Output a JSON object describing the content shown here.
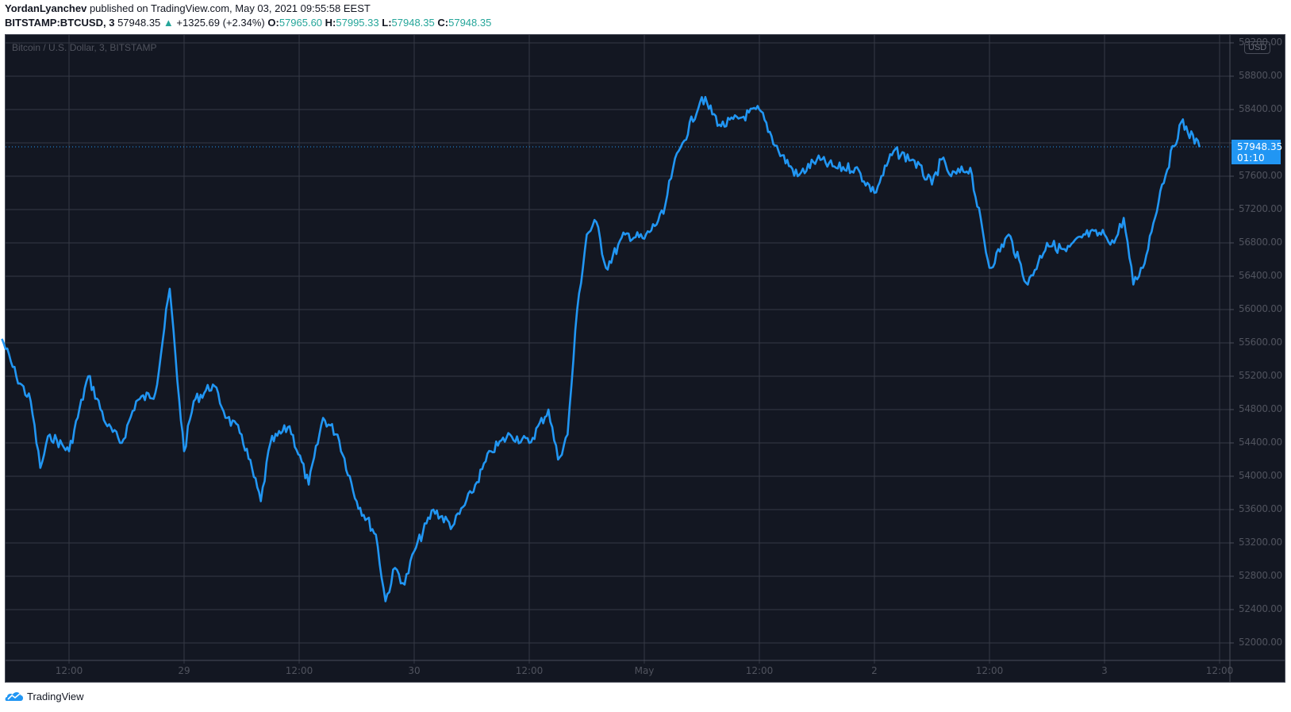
{
  "header": {
    "author": "YordanLyanchev",
    "published_text": "published on TradingView.com, May 03, 2021 09:55:58 EEST",
    "symbol": "BITSTAMP:BTCUSD, 3",
    "last_price": "57948.35",
    "change_arrow": "▲",
    "change": "+1325.69 (+2.34%)",
    "ohlc": {
      "o_label": "O:",
      "o": "57965.60",
      "h_label": "H:",
      "h": "57995.33",
      "l_label": "L:",
      "l": "57948.35",
      "c_label": "C:",
      "c": "57948.35"
    }
  },
  "chart": {
    "legend": "Bitcoin / U.S. Dollar, 3, BITSTAMP",
    "currency_badge": "USD",
    "price_tag": {
      "price": "57948.35",
      "countdown": "01:10"
    },
    "line_color": "#2196f3",
    "background": "#131722",
    "grid_color": "#363a45"
  },
  "y_axis": {
    "labels": [
      "59200.00",
      "58800.00",
      "58400.00",
      "58000.00",
      "57600.00",
      "57200.00",
      "56800.00",
      "56400.00",
      "56000.00",
      "55600.00",
      "55200.00",
      "54800.00",
      "54400.00",
      "54000.00",
      "53600.00",
      "53200.00",
      "52800.00",
      "52400.00",
      "52000.00"
    ]
  },
  "x_axis": {
    "labels": [
      "12:00",
      "29",
      "12:00",
      "30",
      "12:00",
      "May",
      "12:00",
      "2",
      "12:00",
      "3",
      "12:00"
    ]
  },
  "footer": {
    "brand": "TradingView"
  },
  "chart_data": {
    "type": "line",
    "title": "Bitcoin / U.S. Dollar, 3, BITSTAMP",
    "xlabel": "",
    "ylabel": "USD",
    "ylim": [
      51800,
      59300
    ],
    "x_ticks": [
      "12:00",
      "29",
      "12:00",
      "30",
      "12:00",
      "May",
      "12:00",
      "2",
      "12:00",
      "3",
      "12:00"
    ],
    "y_ticks": [
      52000,
      52400,
      52800,
      53200,
      53600,
      54000,
      54400,
      54800,
      55200,
      55600,
      56000,
      56400,
      56800,
      57200,
      57600,
      58000,
      58400,
      58800,
      59200
    ],
    "grid": true,
    "series": [
      {
        "name": "BTCUSD",
        "x": [
          "Apr28 05:00",
          "Apr28 06:30",
          "Apr28 08:00",
          "Apr28 09:00",
          "Apr28 10:00",
          "Apr28 12:00",
          "Apr28 14:00",
          "Apr28 16:00",
          "Apr28 17:30",
          "Apr28 19:00",
          "Apr28 21:00",
          "Apr28 22:30",
          "Apr28 23:30",
          "Apr29 00:00",
          "Apr29 01:00",
          "Apr29 03:00",
          "Apr29 04:30",
          "Apr29 06:00",
          "Apr29 08:00",
          "Apr29 09:00",
          "Apr29 11:00",
          "Apr29 13:00",
          "Apr29 14:30",
          "Apr29 16:00",
          "Apr29 18:00",
          "Apr29 20:00",
          "Apr29 21:00",
          "Apr29 22:00",
          "Apr29 23:00",
          "Apr30 00:00",
          "Apr30 02:00",
          "Apr30 04:00",
          "Apr30 06:00",
          "Apr30 08:00",
          "Apr30 10:00",
          "Apr30 12:00",
          "Apr30 14:00",
          "Apr30 15:00",
          "Apr30 16:00",
          "Apr30 17:00",
          "Apr30 18:00",
          "Apr30 19:00",
          "Apr30 20:00",
          "Apr30 22:00",
          "May01 00:00",
          "May01 02:00",
          "May01 03:00",
          "May01 04:00",
          "May01 06:00",
          "May01 08:00",
          "May01 10:00",
          "May01 12:00",
          "May01 14:00",
          "May01 16:00",
          "May01 18:00",
          "May01 20:00",
          "May01 22:00",
          "May02 00:00",
          "May02 02:00",
          "May02 04:00",
          "May02 06:00",
          "May02 07:00",
          "May02 08:00",
          "May02 10:00",
          "May02 12:00",
          "May02 14:00",
          "May02 16:00",
          "May02 18:00",
          "May02 20:00",
          "May02 22:00",
          "May03 00:00",
          "May03 01:00",
          "May03 02:00",
          "May03 03:00",
          "May03 04:00",
          "May03 06:00",
          "May03 08:00",
          "May03 09:55"
        ],
        "values": [
          55650,
          55200,
          54900,
          54100,
          54500,
          54300,
          55200,
          54600,
          54400,
          54900,
          55000,
          56250,
          54900,
          54300,
          54900,
          55100,
          54700,
          54500,
          53700,
          54400,
          54600,
          53900,
          54700,
          54500,
          53700,
          53300,
          52500,
          52900,
          52700,
          53100,
          53600,
          53400,
          53800,
          54300,
          54500,
          54400,
          54800,
          54200,
          54500,
          56000,
          56900,
          57050,
          56500,
          56900,
          56850,
          57150,
          57700,
          58000,
          58550,
          58200,
          58300,
          58400,
          57900,
          57600,
          57800,
          57700,
          57700,
          57400,
          57900,
          57800,
          57500,
          57800,
          57600,
          57700,
          56500,
          56900,
          56300,
          56800,
          56700,
          56900,
          56900,
          56800,
          57100,
          56300,
          56500,
          57500,
          58250,
          57948.35
        ]
      }
    ]
  }
}
